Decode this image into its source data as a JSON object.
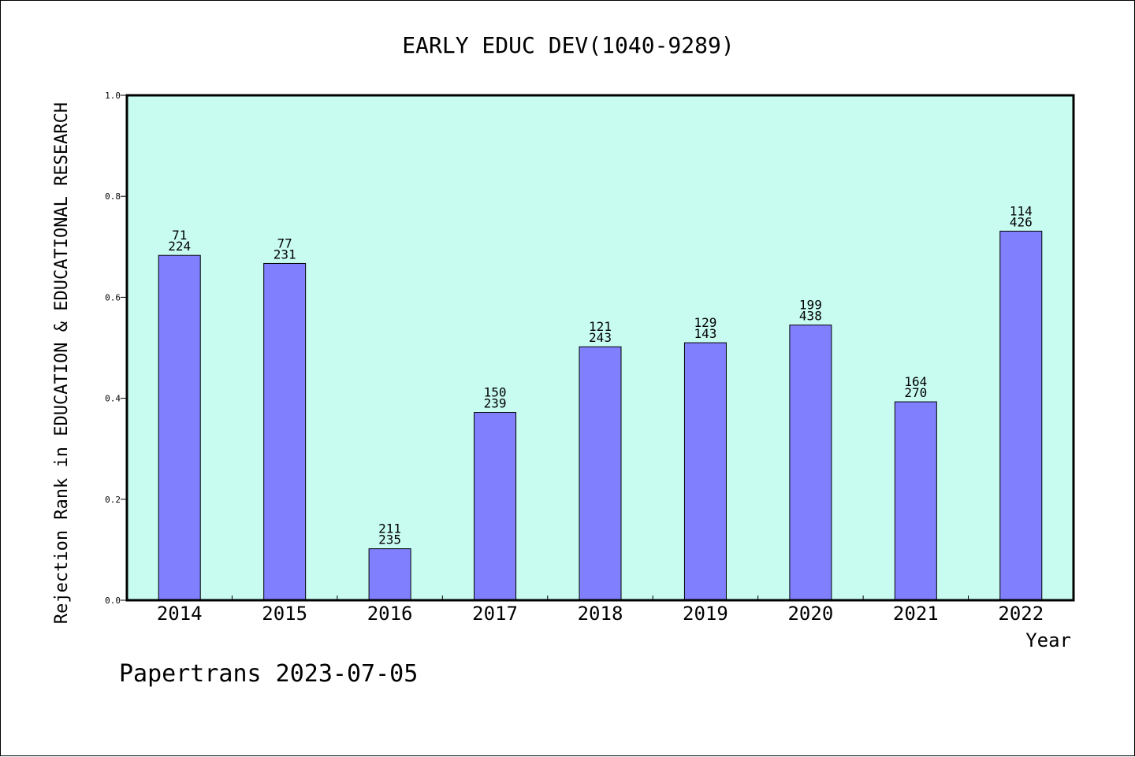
{
  "chart_data": {
    "type": "bar",
    "title": "EARLY EDUC DEV(1040-9289)",
    "xlabel": "Year",
    "ylabel": "Rejection Rank in EDUCATION & EDUCATIONAL RESEARCH",
    "ylim": [
      0,
      1.0
    ],
    "yticks": [
      "0.0",
      "0.2",
      "0.4",
      "0.6",
      "0.8",
      "1.0"
    ],
    "categories": [
      "2014",
      "2015",
      "2016",
      "2017",
      "2018",
      "2019",
      "2020",
      "2021",
      "2022"
    ],
    "values": [
      0.683,
      0.667,
      0.102,
      0.372,
      0.502,
      0.51,
      0.545,
      0.393,
      0.731
    ],
    "labels_top": [
      "71",
      "77",
      "211",
      "150",
      "121",
      "129",
      "199",
      "164",
      "114"
    ],
    "labels_bottom": [
      "224",
      "231",
      "235",
      "239",
      "243",
      "143",
      "438",
      "270",
      "426"
    ],
    "grid": false,
    "colors": {
      "bar": "#8080ff",
      "plot_background": "#c8fcf0"
    }
  },
  "footer": "Papertrans 2023-07-05"
}
